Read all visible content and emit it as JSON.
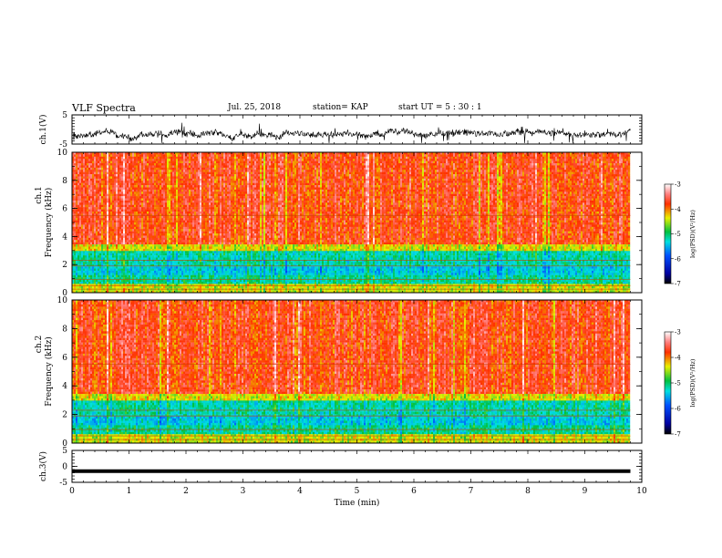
{
  "header": {
    "title": "VLF Spectra",
    "date": "Jul. 25, 2018",
    "station": "station= KAP",
    "start_ut": "start UT = 5 : 30 : 1"
  },
  "chart_data": [
    {
      "type": "line",
      "title": "",
      "xlabel": "",
      "ylabel": "ch.1(V)",
      "xlim": [
        0,
        10
      ],
      "ylim": [
        -5,
        5
      ],
      "yticks": [
        "-5",
        "5"
      ],
      "series": [
        {
          "x": [
            0,
            9.8
          ],
          "y": [
            -1.5,
            -1.5
          ]
        }
      ],
      "grid": false
    },
    {
      "type": "heatmap",
      "title": "",
      "xlabel": "",
      "ylabel_top": "ch.1",
      "ylabel": "Frequency (kHz)",
      "xlim": [
        0,
        10
      ],
      "ylim": [
        0,
        10
      ],
      "yticks": [
        "0",
        "2",
        "4",
        "6",
        "8",
        "10"
      ],
      "data_end_min": 9.8,
      "colorbar": {
        "label": "log(PSD)(V²/Hz)",
        "range": [
          -7,
          -3
        ],
        "ticks": [
          "-7",
          "-6",
          "-5",
          "-4",
          "-3"
        ]
      }
    },
    {
      "type": "heatmap",
      "title": "",
      "xlabel": "",
      "ylabel_top": "ch.2",
      "ylabel": "Frequency (kHz)",
      "xlim": [
        0,
        10
      ],
      "ylim": [
        0,
        10
      ],
      "yticks": [
        "0",
        "2",
        "4",
        "6",
        "8",
        "10"
      ],
      "data_end_min": 9.8,
      "colorbar": {
        "label": "log(PSD)(V²/Hz)",
        "range": [
          -7,
          -3
        ],
        "ticks": [
          "-7",
          "-6",
          "-5",
          "-4",
          "-3"
        ]
      }
    },
    {
      "type": "line",
      "title": "",
      "xlabel": "Time (min)",
      "ylabel": "ch.3(V)",
      "xlim": [
        0,
        10
      ],
      "ylim": [
        -5,
        5
      ],
      "yticks": [
        "-5",
        "0",
        "5"
      ],
      "xticks": [
        "0",
        "1",
        "2",
        "3",
        "4",
        "5",
        "6",
        "7",
        "8",
        "9",
        "10"
      ],
      "series": [
        {
          "x": [
            0,
            9.8
          ],
          "y": [
            -1.5,
            -1.5
          ]
        }
      ],
      "grid": false
    }
  ]
}
